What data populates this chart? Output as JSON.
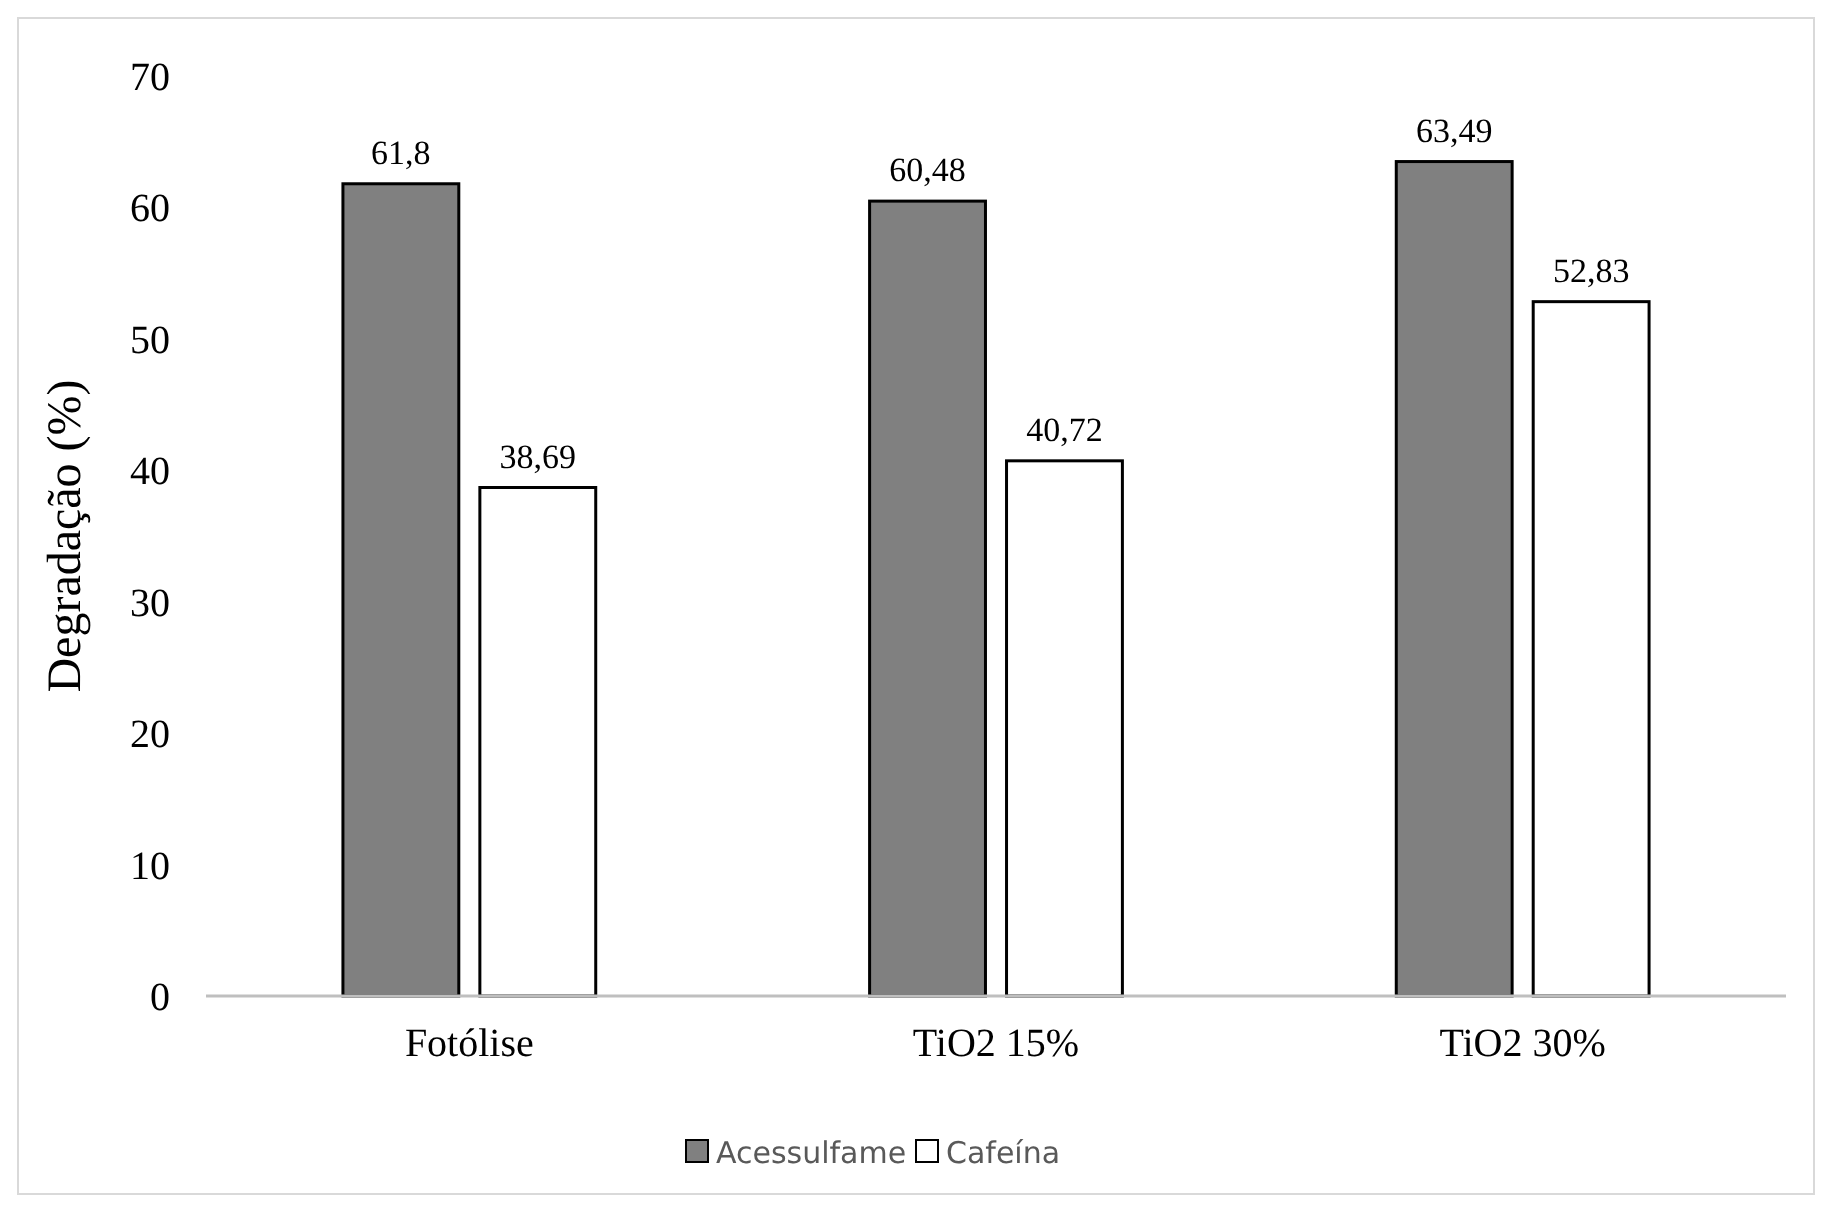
{
  "chart_data": {
    "type": "bar",
    "ylabel": "Degradação (%)",
    "categories": [
      "Fotólise",
      "TiO2 15%",
      "TiO2 30%"
    ],
    "series": [
      {
        "name": "Acessulfame",
        "color": "#808080",
        "values": [
          61.8,
          60.48,
          63.49
        ],
        "value_labels": [
          "61,8",
          "60,48",
          "63,49"
        ]
      },
      {
        "name": "Cafeína",
        "color": "#ffffff",
        "values": [
          38.69,
          40.72,
          52.83
        ],
        "value_labels": [
          "38,69",
          "40,72",
          "52,83"
        ]
      }
    ],
    "ylim": [
      0,
      70
    ],
    "yticks": [
      0,
      10,
      20,
      30,
      40,
      50,
      60,
      70
    ],
    "legend": "bottom"
  }
}
